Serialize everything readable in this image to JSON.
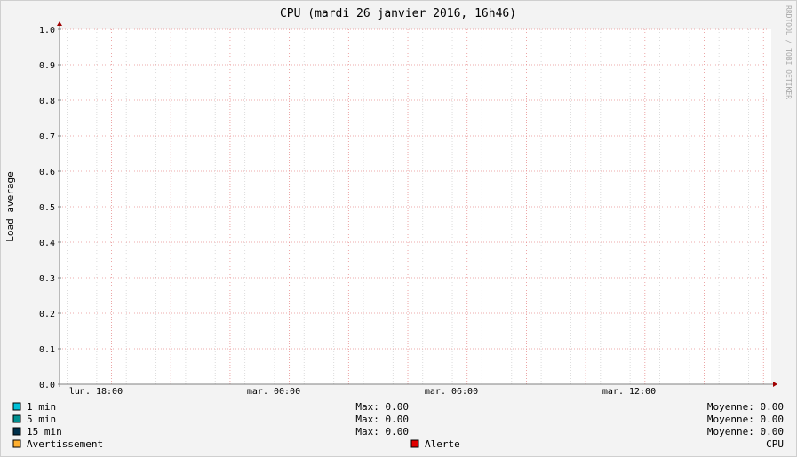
{
  "chart_data": {
    "type": "line",
    "title": "CPU (mardi 26 janvier 2016, 16h46)",
    "ylabel": "Load average",
    "xlabel": "",
    "watermark": "RRDTOOL / TOBI OETIKER",
    "ylim": [
      0,
      1.0
    ],
    "y_ticks": [
      "0.0",
      "0.1",
      "0.2",
      "0.3",
      "0.4",
      "0.5",
      "0.6",
      "0.7",
      "0.8",
      "0.9",
      "1.0"
    ],
    "x_ticks": [
      "lun. 18:00",
      "mar. 00:00",
      "mar. 06:00",
      "mar. 12:00"
    ],
    "grid": true,
    "legend_placement": "bottom",
    "series": [
      {
        "name": "1 min",
        "color": "#00c0d8",
        "max": "Max: 0.00",
        "avg": "Moyenne: 0.00",
        "values": []
      },
      {
        "name": "5 min",
        "color": "#009090",
        "max": "Max: 0.00",
        "avg": "Moyenne: 0.00",
        "values": []
      },
      {
        "name": "15 min",
        "color": "#00304a",
        "max": "Max: 0.00",
        "avg": "Moyenne: 0.00",
        "values": []
      }
    ],
    "thresholds": [
      {
        "name": "Avertissement",
        "color": "#ffb030"
      },
      {
        "name": "Alerte",
        "color": "#e00000"
      }
    ],
    "footer_label": "CPU",
    "colors": {
      "grid_major": "#e89090",
      "grid_minor": "#dcdcdc",
      "axis": "#808080",
      "arrow": "#a00000",
      "plot_bg": "#ffffff"
    }
  }
}
